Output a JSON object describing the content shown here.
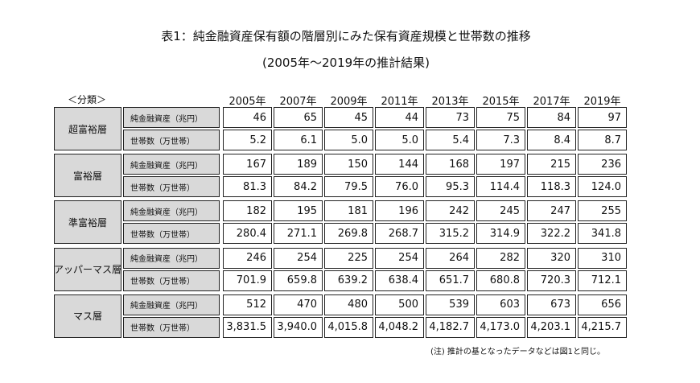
{
  "header": {
    "title": "表1：純金融資産保有額の階層別にみた保有資産規模と世帯数の推移",
    "subtitle": "(2005年～2019年の推計結果)"
  },
  "table": {
    "category_label": "＜分類＞",
    "years": [
      "2005年",
      "2007年",
      "2009年",
      "2011年",
      "2013年",
      "2015年",
      "2017年",
      "2019年"
    ],
    "groups": [
      {
        "name": "超富裕層",
        "rows": [
          {
            "label": "純金融資産（兆円）",
            "values": [
              "46",
              "65",
              "45",
              "44",
              "73",
              "75",
              "84",
              "97"
            ]
          },
          {
            "label": "世帯数（万世帯）",
            "values": [
              "5.2",
              "6.1",
              "5.0",
              "5.0",
              "5.4",
              "7.3",
              "8.4",
              "8.7"
            ]
          }
        ]
      },
      {
        "name": "富裕層",
        "rows": [
          {
            "label": "純金融資産（兆円）",
            "values": [
              "167",
              "189",
              "150",
              "144",
              "168",
              "197",
              "215",
              "236"
            ]
          },
          {
            "label": "世帯数（万世帯）",
            "values": [
              "81.3",
              "84.2",
              "79.5",
              "76.0",
              "95.3",
              "114.4",
              "118.3",
              "124.0"
            ]
          }
        ]
      },
      {
        "name": "準富裕層",
        "rows": [
          {
            "label": "純金融資産（兆円）",
            "values": [
              "182",
              "195",
              "181",
              "196",
              "242",
              "245",
              "247",
              "255"
            ]
          },
          {
            "label": "世帯数（万世帯）",
            "values": [
              "280.4",
              "271.1",
              "269.8",
              "268.7",
              "315.2",
              "314.9",
              "322.2",
              "341.8"
            ]
          }
        ]
      },
      {
        "name": "アッパーマス層",
        "rows": [
          {
            "label": "純金融資産（兆円）",
            "values": [
              "246",
              "254",
              "225",
              "254",
              "264",
              "282",
              "320",
              "310"
            ]
          },
          {
            "label": "世帯数（万世帯）",
            "values": [
              "701.9",
              "659.8",
              "639.2",
              "638.4",
              "651.7",
              "680.8",
              "720.3",
              "712.1"
            ]
          }
        ]
      },
      {
        "name": "マス層",
        "rows": [
          {
            "label": "純金融資産（兆円）",
            "values": [
              "512",
              "470",
              "480",
              "500",
              "539",
              "603",
              "673",
              "656"
            ]
          },
          {
            "label": "世帯数（万世帯）",
            "values": [
              "3,831.5",
              "3,940.0",
              "4,015.8",
              "4,048.2",
              "4,182.7",
              "4,173.0",
              "4,203.1",
              "4,215.7"
            ]
          }
        ]
      }
    ]
  },
  "note": "(注) 推計の基となったデータなどは図1と同じ。"
}
